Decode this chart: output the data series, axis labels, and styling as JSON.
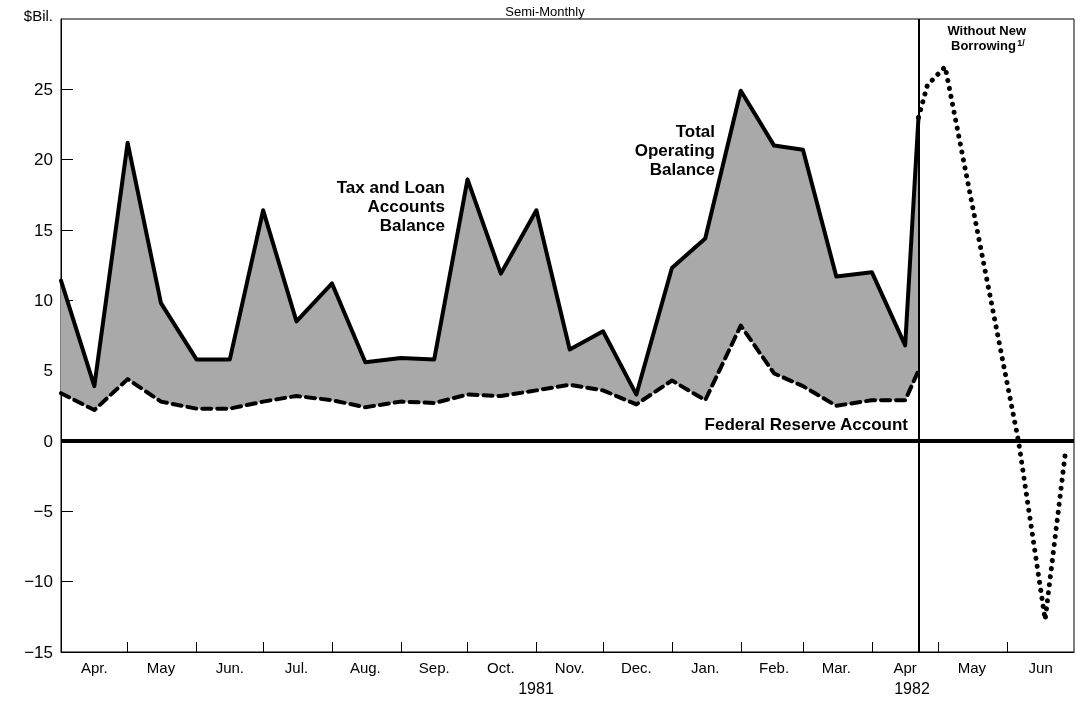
{
  "chart_data": {
    "type": "line",
    "title": "Semi-Monthly",
    "ylabel": "$Bil.",
    "xlim": [
      "1981-04-01",
      "1982-07-01"
    ],
    "ylim": [
      -15,
      30
    ],
    "xticks": [
      {
        "value": "1981-04-16",
        "label": "Apr."
      },
      {
        "value": "1981-05-01",
        "label": null
      },
      {
        "value": "1981-05-16",
        "label": "May"
      },
      {
        "value": "1981-06-01",
        "label": null
      },
      {
        "value": "1981-06-16",
        "label": "Jun."
      },
      {
        "value": "1981-07-01",
        "label": null
      },
      {
        "value": "1981-07-16",
        "label": "Jul."
      },
      {
        "value": "1981-08-01",
        "label": null
      },
      {
        "value": "1981-08-16",
        "label": "Aug."
      },
      {
        "value": "1981-09-01",
        "label": null
      },
      {
        "value": "1981-09-16",
        "label": "Sep."
      },
      {
        "value": "1981-10-01",
        "label": null
      },
      {
        "value": "1981-10-16",
        "label": "Oct."
      },
      {
        "value": "1981-11-01",
        "label": null
      },
      {
        "value": "1981-11-16",
        "label": "Nov."
      },
      {
        "value": "1981-12-01",
        "label": null
      },
      {
        "value": "1981-12-16",
        "label": "Dec."
      },
      {
        "value": "1982-01-01",
        "label": null
      },
      {
        "value": "1982-01-16",
        "label": "Jan."
      },
      {
        "value": "1982-02-01",
        "label": null
      },
      {
        "value": "1982-02-16",
        "label": "Feb."
      },
      {
        "value": "1982-03-01",
        "label": null
      },
      {
        "value": "1982-03-16",
        "label": "Mar."
      },
      {
        "value": "1982-04-01",
        "label": null
      },
      {
        "value": "1982-04-16",
        "label": "Apr"
      },
      {
        "value": "1982-05-01",
        "label": null
      },
      {
        "value": "1982-05-16",
        "label": "May"
      },
      {
        "value": "1982-06-01",
        "label": null
      },
      {
        "value": "1982-06-16",
        "label": "Jun"
      }
    ],
    "yticks": [
      -15,
      -10,
      -5,
      0,
      5,
      10,
      15,
      20,
      25
    ],
    "grid": false,
    "marker": "none",
    "series": [
      {
        "color": "#000000",
        "line_style": "solid",
        "x": [
          "1981-04-01",
          "1981-04-16",
          "1981-05-01",
          "1981-05-16",
          "1981-06-01",
          "1981-06-16",
          "1981-07-01",
          "1981-07-16",
          "1981-08-01",
          "1981-08-16",
          "1981-09-01",
          "1981-09-16",
          "1981-10-01",
          "1981-10-16",
          "1981-11-01",
          "1981-11-16",
          "1981-12-01",
          "1981-12-16",
          "1982-01-01",
          "1982-01-16",
          "1982-02-01",
          "1982-02-16",
          "1982-03-01",
          "1982-03-16",
          "1982-04-01",
          "1982-04-16",
          "1982-04-22"
        ],
        "values": [
          11.4,
          3.9,
          21.2,
          9.8,
          5.8,
          5.8,
          16.4,
          8.5,
          11.2,
          5.6,
          5.9,
          5.8,
          18.6,
          11.9,
          16.4,
          6.5,
          7.8,
          3.3,
          12.3,
          14.4,
          24.9,
          21.0,
          20.7,
          11.7,
          12.0,
          6.8,
          23.0
        ],
        "lower": [
          3.4,
          2.2,
          4.4,
          2.8,
          2.3,
          2.3,
          2.8,
          3.2,
          2.9,
          2.4,
          2.8,
          2.7,
          3.3,
          3.2,
          3.6,
          4.0,
          3.6,
          2.6,
          4.3,
          2.9,
          8.2,
          4.8,
          3.9,
          2.5,
          2.9,
          2.9,
          5.0
        ],
        "upper": [
          11.4,
          3.9,
          21.2,
          9.8,
          5.8,
          5.8,
          16.4,
          8.5,
          11.2,
          5.6,
          5.9,
          5.8,
          18.6,
          11.9,
          16.4,
          6.5,
          7.8,
          3.3,
          12.3,
          14.4,
          24.9,
          21.0,
          20.7,
          11.7,
          12.0,
          6.8,
          23.0
        ]
      },
      {
        "color": "#000000",
        "line_style": "dashed",
        "x": [
          "1981-04-01",
          "1981-04-16",
          "1981-05-01",
          "1981-05-16",
          "1981-06-01",
          "1981-06-16",
          "1981-07-01",
          "1981-07-16",
          "1981-08-01",
          "1981-08-16",
          "1981-09-01",
          "1981-09-16",
          "1981-10-01",
          "1981-10-16",
          "1981-11-01",
          "1981-11-16",
          "1981-12-01",
          "1981-12-16",
          "1982-01-01",
          "1982-01-16",
          "1982-02-01",
          "1982-02-16",
          "1982-03-01",
          "1982-03-16",
          "1982-04-01",
          "1982-04-16",
          "1982-04-22"
        ],
        "values": [
          3.4,
          2.2,
          4.4,
          2.8,
          2.3,
          2.3,
          2.8,
          3.2,
          2.9,
          2.4,
          2.8,
          2.7,
          3.3,
          3.2,
          3.6,
          4.0,
          3.6,
          2.6,
          4.3,
          2.9,
          8.2,
          4.8,
          3.9,
          2.5,
          2.9,
          2.9,
          5.0
        ]
      },
      {
        "color": "#000000",
        "line_style": "dotted",
        "x": [
          "1982-04-22",
          "1982-04-26",
          "1982-05-04",
          "1982-05-07",
          "1982-06-06",
          "1982-06-18",
          "1982-06-27"
        ],
        "values": [
          23.0,
          25.3,
          26.6,
          24.2,
          0,
          -12.7,
          -1
        ]
      }
    ],
    "ref_lines": [
      {
        "axis": "y",
        "value": 0,
        "color": "#000000"
      },
      {
        "axis": "x",
        "value": "1982-04-22",
        "label": "Without New Borrowing$^{1/}$",
        "color": "#000000"
      }
    ],
    "annotations": [
      "Tax and Loan Accounts Balance",
      "Total Operating Balance",
      "Federal Reserve Account",
      "1981",
      "1982"
    ]
  }
}
